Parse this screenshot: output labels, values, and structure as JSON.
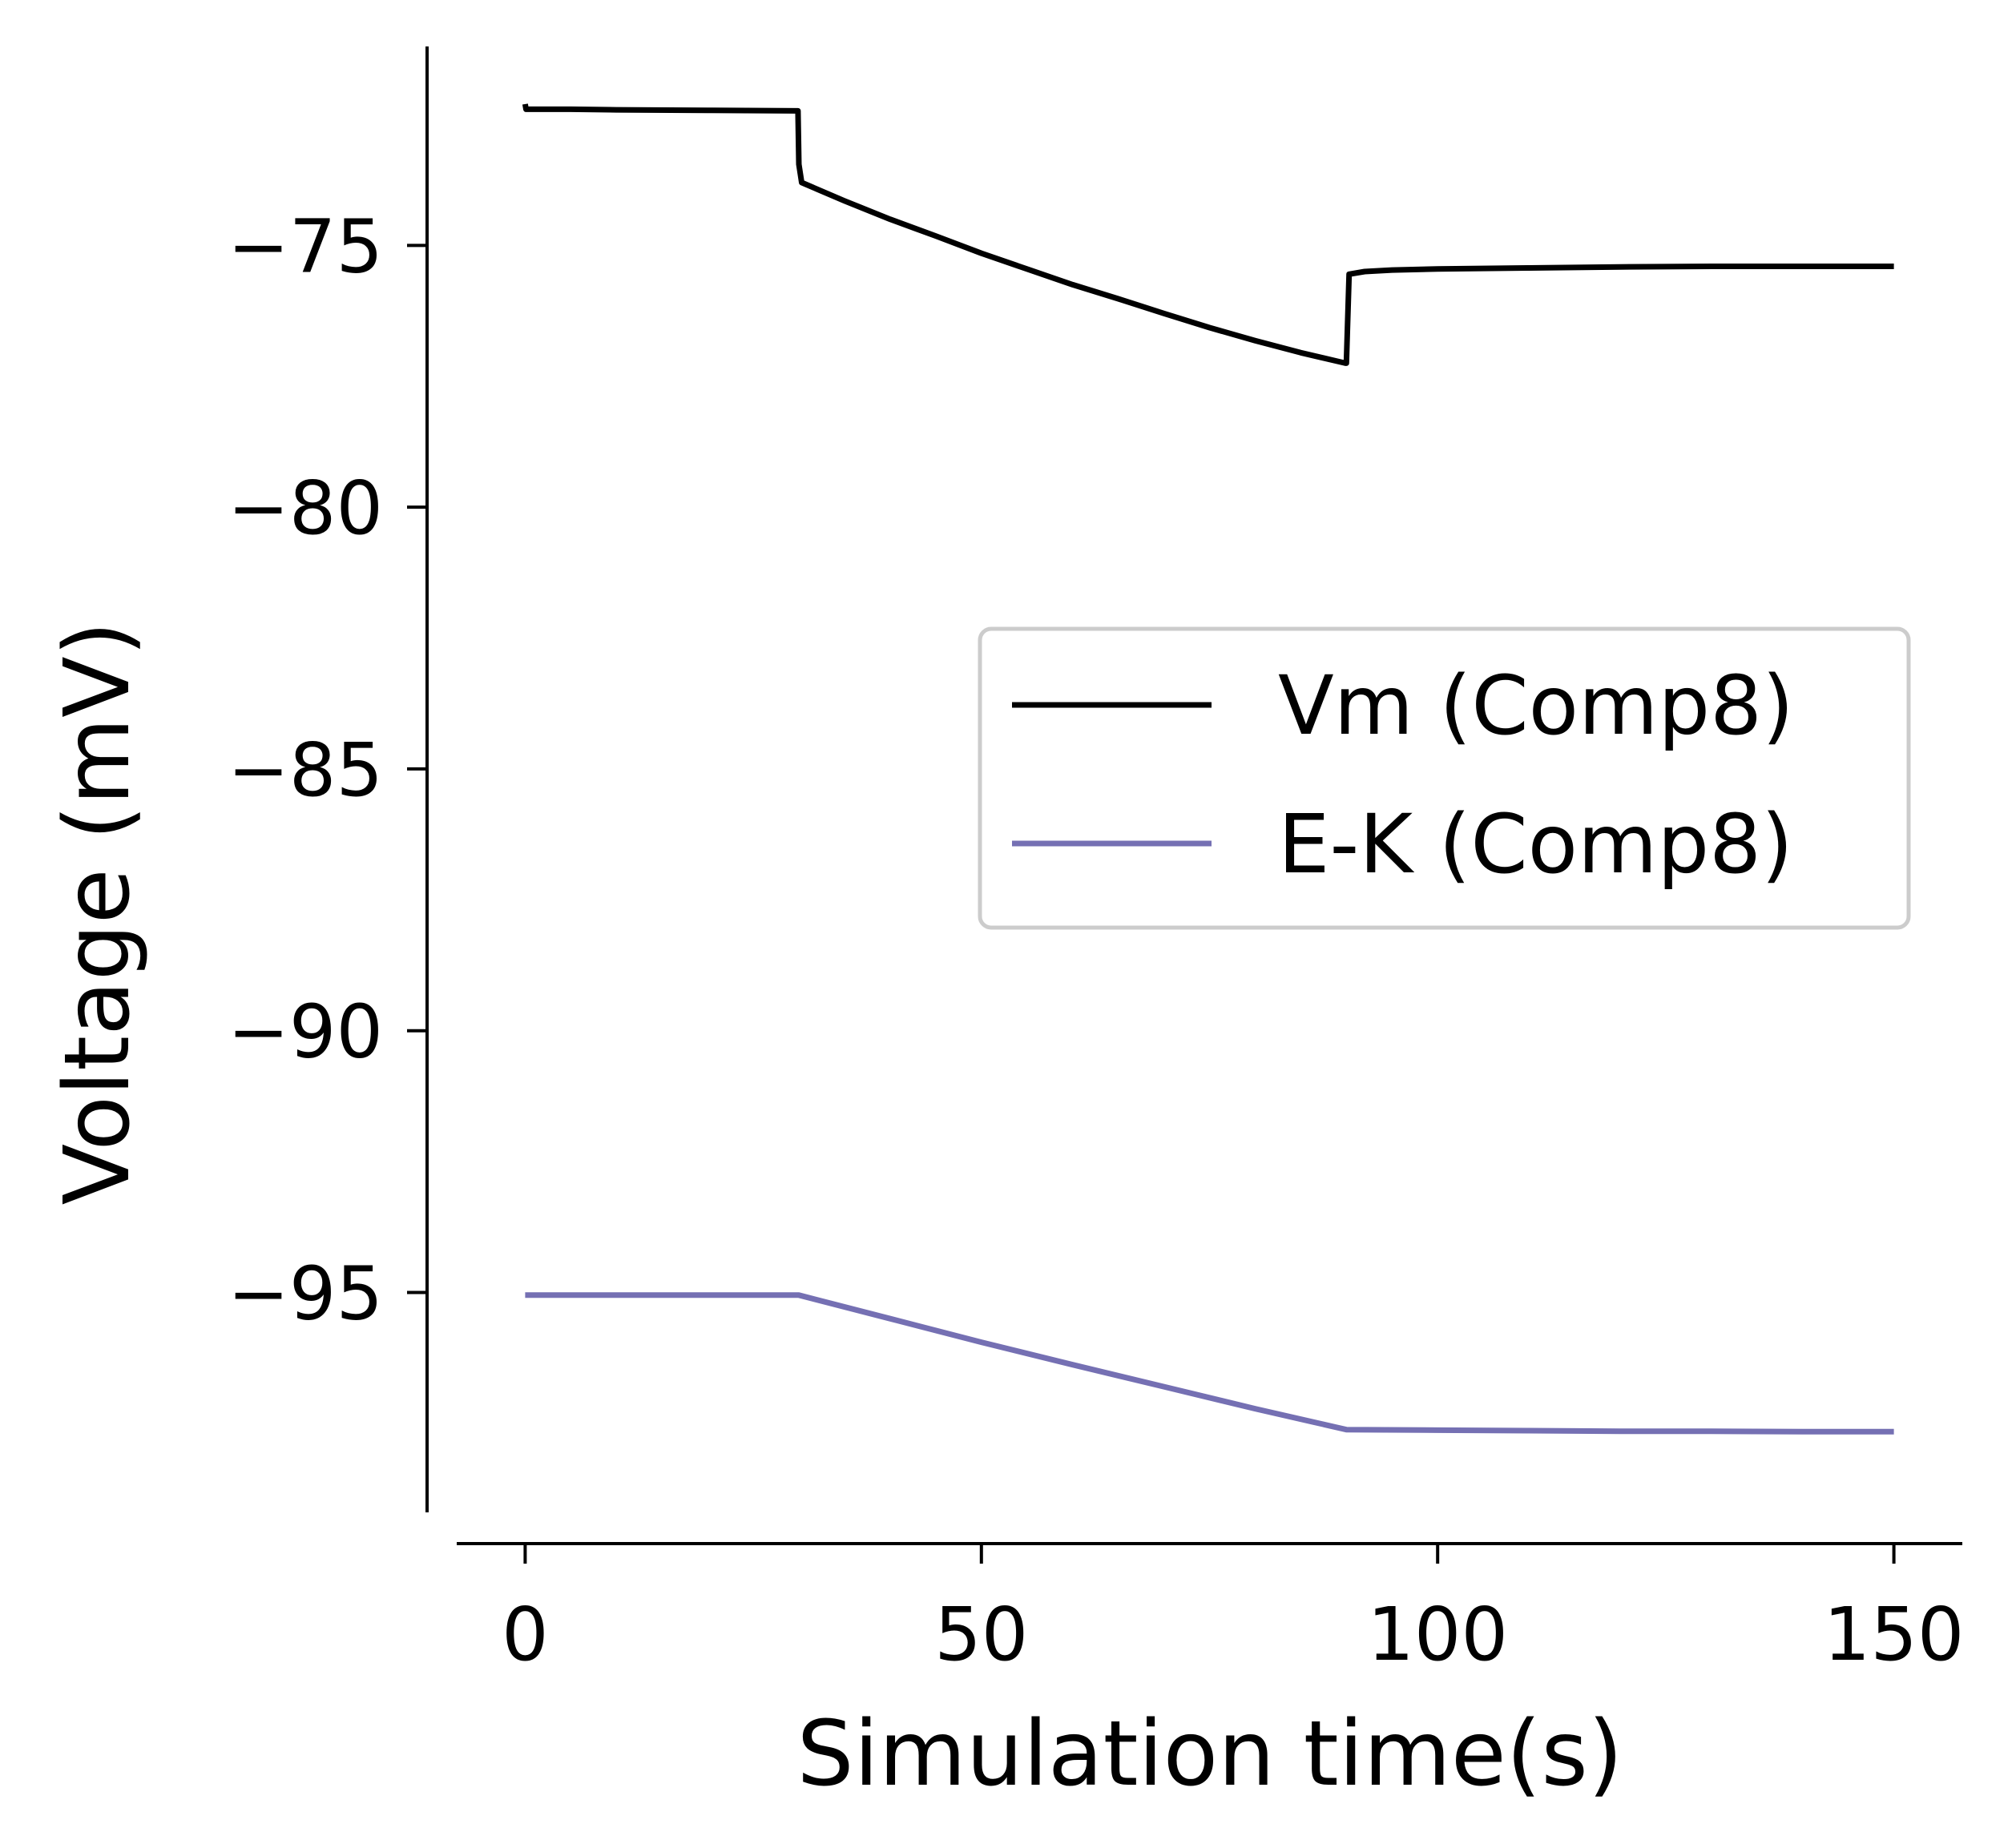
{
  "chart_data": {
    "type": "line",
    "xlabel": "Simulation time(s)",
    "ylabel": "Voltage (mV)",
    "xlim": [
      -7.5,
      157.5
    ],
    "ylim": [
      -99.2,
      -71.2
    ],
    "xticks": [
      0,
      50,
      100,
      150
    ],
    "xtick_labels": [
      "0",
      "50",
      "100",
      "150"
    ],
    "yticks": [
      -75,
      -80,
      -85,
      -90,
      -95
    ],
    "ytick_labels": [
      "−75",
      "−80",
      "−85",
      "−90",
      "−95"
    ],
    "grid": false,
    "legend_position": "center-right",
    "series": [
      {
        "name": "Vm (Comp8)",
        "color": "#000000",
        "x": [
          0,
          0.1,
          5,
          10,
          20,
          29.9,
          30,
          30.3,
          35,
          40,
          45,
          50,
          55,
          60,
          65,
          70,
          75,
          80,
          85,
          89.9,
          90,
          90.3,
          92,
          95,
          100,
          110,
          120,
          130,
          140,
          150
        ],
        "y": [
          -72.3,
          -72.4,
          -72.4,
          -72.41,
          -72.42,
          -72.43,
          -73.45,
          -73.8,
          -74.15,
          -74.5,
          -74.82,
          -75.15,
          -75.45,
          -75.75,
          -76.02,
          -76.3,
          -76.57,
          -76.82,
          -77.05,
          -77.25,
          -77.25,
          -75.55,
          -75.5,
          -75.47,
          -75.45,
          -75.43,
          -75.41,
          -75.4,
          -75.4,
          -75.4
        ]
      },
      {
        "name": "E-K (Comp8)",
        "color": "#7570b3",
        "x": [
          0,
          5,
          10,
          20,
          30,
          40,
          50,
          60,
          70,
          80,
          90,
          100,
          110,
          120,
          130,
          140,
          150
        ],
        "y": [
          -95.05,
          -95.05,
          -95.05,
          -95.05,
          -95.05,
          -95.5,
          -95.95,
          -96.38,
          -96.8,
          -97.22,
          -97.62,
          -97.63,
          -97.64,
          -97.65,
          -97.65,
          -97.66,
          -97.66
        ]
      }
    ]
  }
}
